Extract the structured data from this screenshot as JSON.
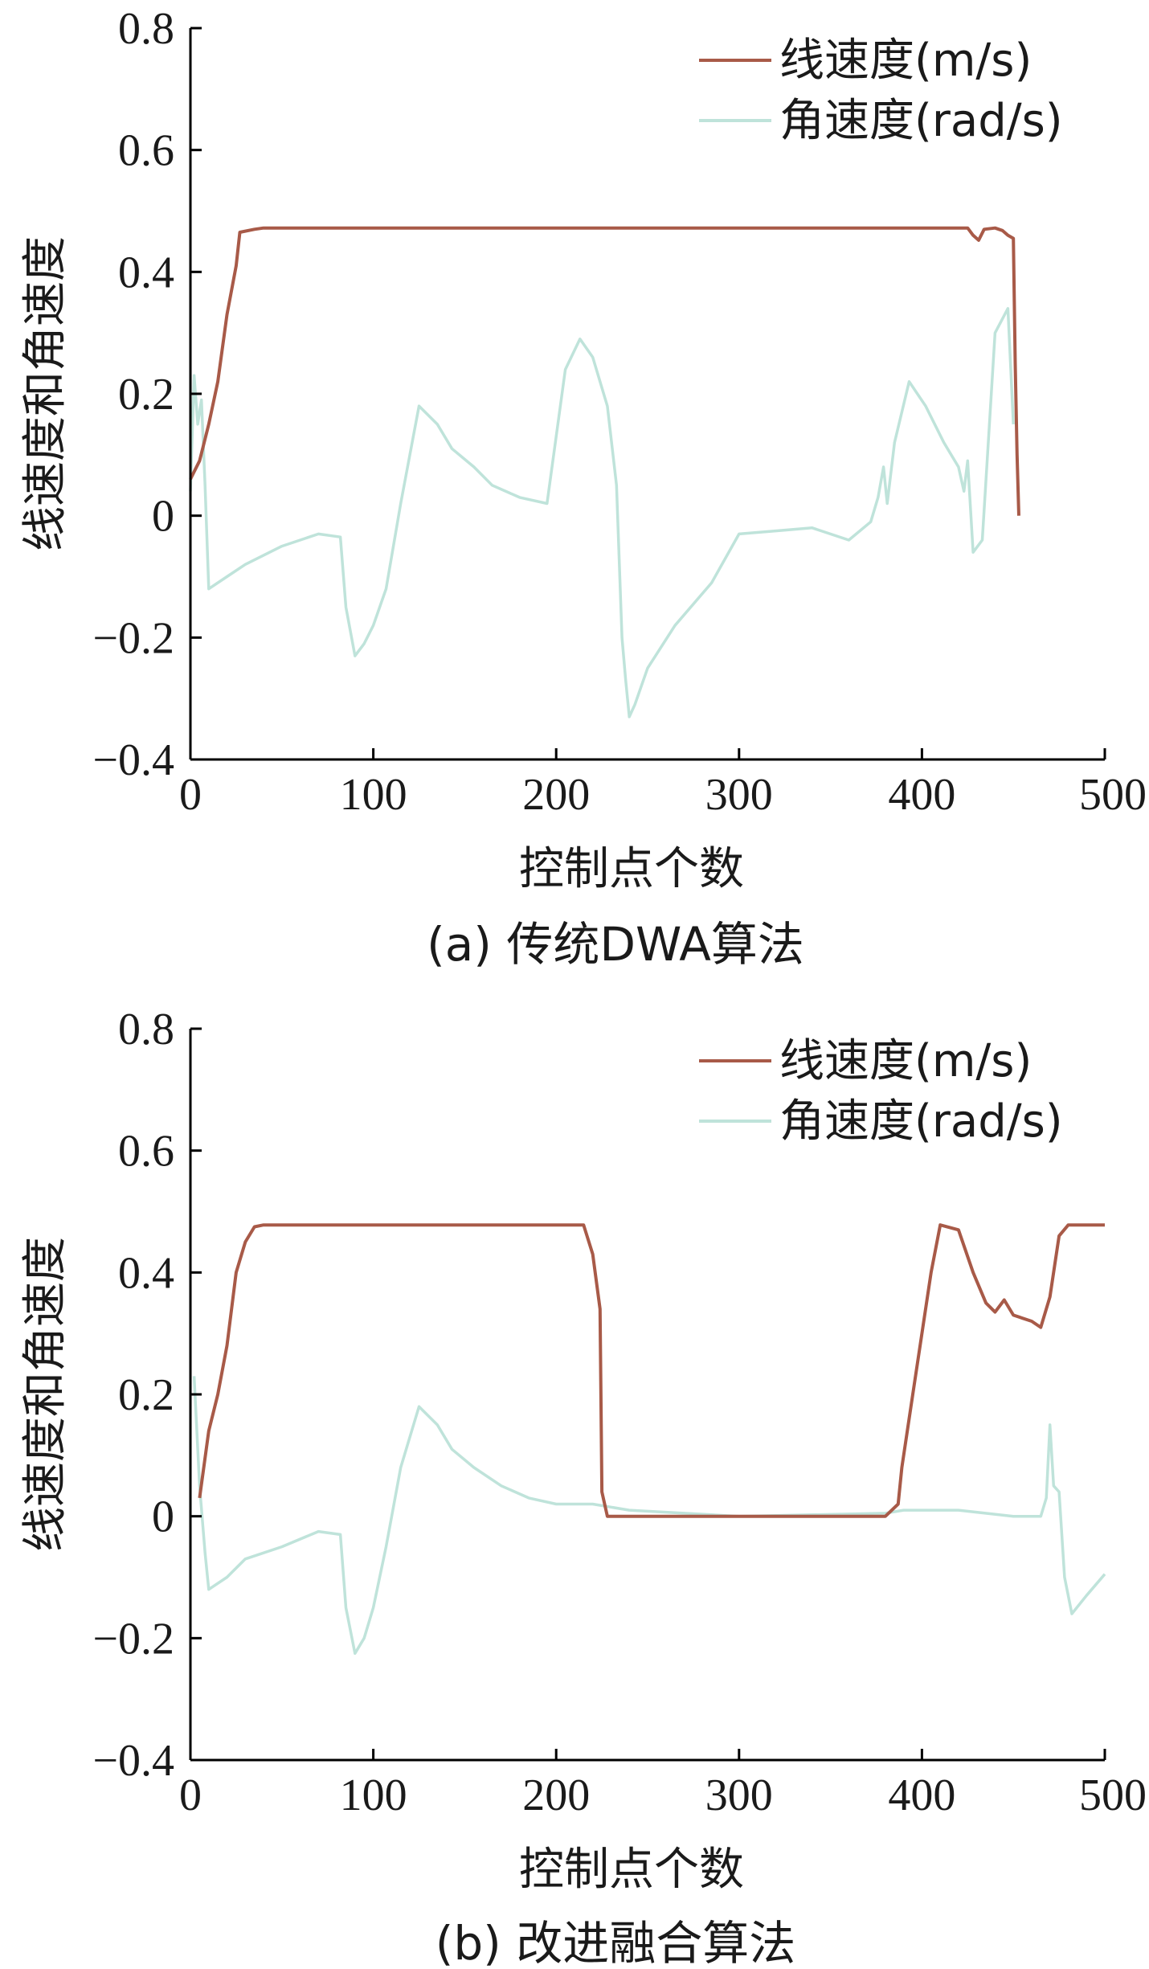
{
  "colors": {
    "linear": "#a85a48",
    "angular": "#bfe3da",
    "axis": "#000000"
  },
  "chart_data": [
    {
      "type": "line",
      "caption": "(a) 传统DWA算法",
      "xlabel": "控制点个数",
      "ylabel": "线速度和角速度",
      "xlim": [
        0,
        500
      ],
      "ylim": [
        -0.4,
        0.8
      ],
      "x_ticks": [
        "0",
        "100",
        "200",
        "300",
        "400",
        "500"
      ],
      "y_ticks": [
        "−0.4",
        "−0.2",
        "0",
        "0.2",
        "0.4",
        "0.6",
        "0.8"
      ],
      "x_tick_values": [
        0,
        100,
        200,
        300,
        400,
        500
      ],
      "y_tick_values": [
        -0.4,
        -0.2,
        0,
        0.2,
        0.4,
        0.6,
        0.8
      ],
      "legend_position": "top-right",
      "series": [
        {
          "name": "线速度(m/s)",
          "color": "#a85a48",
          "points": [
            [
              0,
              0.06
            ],
            [
              5,
              0.09
            ],
            [
              10,
              0.15
            ],
            [
              15,
              0.22
            ],
            [
              20,
              0.33
            ],
            [
              25,
              0.41
            ],
            [
              27,
              0.465
            ],
            [
              35,
              0.47
            ],
            [
              40,
              0.472
            ],
            [
              100,
              0.472
            ],
            [
              200,
              0.472
            ],
            [
              300,
              0.472
            ],
            [
              400,
              0.472
            ],
            [
              425,
              0.472
            ],
            [
              428,
              0.46
            ],
            [
              431,
              0.452
            ],
            [
              434,
              0.47
            ],
            [
              440,
              0.472
            ],
            [
              444,
              0.468
            ],
            [
              447,
              0.46
            ],
            [
              450,
              0.455
            ],
            [
              451,
              0.25
            ],
            [
              452,
              0.1
            ],
            [
              453,
              0.0
            ]
          ]
        },
        {
          "name": "角速度(rad/s)",
          "color": "#bfe3da",
          "points": [
            [
              0,
              0.04
            ],
            [
              2,
              0.23
            ],
            [
              4,
              0.15
            ],
            [
              6,
              0.19
            ],
            [
              8,
              0.05
            ],
            [
              10,
              -0.12
            ],
            [
              20,
              -0.1
            ],
            [
              30,
              -0.08
            ],
            [
              50,
              -0.05
            ],
            [
              70,
              -0.03
            ],
            [
              82,
              -0.035
            ],
            [
              85,
              -0.15
            ],
            [
              90,
              -0.23
            ],
            [
              95,
              -0.21
            ],
            [
              100,
              -0.18
            ],
            [
              107,
              -0.12
            ],
            [
              115,
              0.02
            ],
            [
              125,
              0.18
            ],
            [
              135,
              0.15
            ],
            [
              143,
              0.11
            ],
            [
              155,
              0.08
            ],
            [
              165,
              0.05
            ],
            [
              180,
              0.03
            ],
            [
              195,
              0.02
            ],
            [
              205,
              0.24
            ],
            [
              213,
              0.29
            ],
            [
              220,
              0.26
            ],
            [
              228,
              0.18
            ],
            [
              233,
              0.05
            ],
            [
              236,
              -0.2
            ],
            [
              238,
              -0.27
            ],
            [
              240,
              -0.33
            ],
            [
              243,
              -0.31
            ],
            [
              250,
              -0.25
            ],
            [
              265,
              -0.18
            ],
            [
              285,
              -0.11
            ],
            [
              300,
              -0.03
            ],
            [
              320,
              -0.025
            ],
            [
              340,
              -0.02
            ],
            [
              360,
              -0.04
            ],
            [
              372,
              -0.01
            ],
            [
              376,
              0.03
            ],
            [
              379,
              0.08
            ],
            [
              381,
              0.02
            ],
            [
              385,
              0.12
            ],
            [
              393,
              0.22
            ],
            [
              402,
              0.18
            ],
            [
              412,
              0.12
            ],
            [
              420,
              0.08
            ],
            [
              423,
              0.04
            ],
            [
              425,
              0.09
            ],
            [
              428,
              -0.06
            ],
            [
              433,
              -0.04
            ],
            [
              440,
              0.3
            ],
            [
              447,
              0.34
            ],
            [
              450,
              0.15
            ]
          ]
        }
      ]
    },
    {
      "type": "line",
      "caption": "(b) 改进融合算法",
      "xlabel": "控制点个数",
      "ylabel": "线速度和角速度",
      "xlim": [
        0,
        500
      ],
      "ylim": [
        -0.4,
        0.8
      ],
      "x_ticks": [
        "0",
        "100",
        "200",
        "300",
        "400",
        "500"
      ],
      "y_ticks": [
        "−0.4",
        "−0.2",
        "0",
        "0.2",
        "0.4",
        "0.6",
        "0.8"
      ],
      "x_tick_values": [
        0,
        100,
        200,
        300,
        400,
        500
      ],
      "y_tick_values": [
        -0.4,
        -0.2,
        0,
        0.2,
        0.4,
        0.6,
        0.8
      ],
      "legend_position": "top-right",
      "series": [
        {
          "name": "线速度(m/s)",
          "color": "#a85a48",
          "points": [
            [
              5,
              0.03
            ],
            [
              10,
              0.14
            ],
            [
              15,
              0.2
            ],
            [
              20,
              0.28
            ],
            [
              25,
              0.4
            ],
            [
              30,
              0.45
            ],
            [
              35,
              0.475
            ],
            [
              40,
              0.478
            ],
            [
              100,
              0.478
            ],
            [
              200,
              0.478
            ],
            [
              215,
              0.478
            ],
            [
              220,
              0.43
            ],
            [
              224,
              0.34
            ],
            [
              225,
              0.04
            ],
            [
              228,
              0.0
            ],
            [
              300,
              0.0
            ],
            [
              380,
              0.0
            ],
            [
              387,
              0.02
            ],
            [
              389,
              0.08
            ],
            [
              395,
              0.2
            ],
            [
              405,
              0.4
            ],
            [
              410,
              0.478
            ],
            [
              420,
              0.47
            ],
            [
              428,
              0.4
            ],
            [
              435,
              0.35
            ],
            [
              440,
              0.335
            ],
            [
              445,
              0.355
            ],
            [
              450,
              0.33
            ],
            [
              460,
              0.32
            ],
            [
              465,
              0.31
            ],
            [
              470,
              0.36
            ],
            [
              475,
              0.46
            ],
            [
              480,
              0.478
            ],
            [
              500,
              0.478
            ]
          ]
        },
        {
          "name": "角速度(rad/s)",
          "color": "#bfe3da",
          "points": [
            [
              2,
              0.23
            ],
            [
              5,
              0.05
            ],
            [
              8,
              -0.06
            ],
            [
              10,
              -0.12
            ],
            [
              20,
              -0.1
            ],
            [
              30,
              -0.07
            ],
            [
              50,
              -0.05
            ],
            [
              70,
              -0.025
            ],
            [
              82,
              -0.03
            ],
            [
              85,
              -0.15
            ],
            [
              90,
              -0.225
            ],
            [
              95,
              -0.2
            ],
            [
              100,
              -0.15
            ],
            [
              107,
              -0.05
            ],
            [
              115,
              0.08
            ],
            [
              125,
              0.18
            ],
            [
              135,
              0.15
            ],
            [
              143,
              0.11
            ],
            [
              155,
              0.08
            ],
            [
              170,
              0.05
            ],
            [
              185,
              0.03
            ],
            [
              200,
              0.02
            ],
            [
              220,
              0.02
            ],
            [
              240,
              0.01
            ],
            [
              300,
              0.0
            ],
            [
              380,
              0.005
            ],
            [
              390,
              0.01
            ],
            [
              420,
              0.01
            ],
            [
              450,
              0.0
            ],
            [
              465,
              0.0
            ],
            [
              468,
              0.03
            ],
            [
              470,
              0.15
            ],
            [
              472,
              0.05
            ],
            [
              475,
              0.04
            ],
            [
              478,
              -0.1
            ],
            [
              482,
              -0.16
            ],
            [
              490,
              -0.13
            ],
            [
              500,
              -0.095
            ]
          ]
        }
      ]
    }
  ]
}
